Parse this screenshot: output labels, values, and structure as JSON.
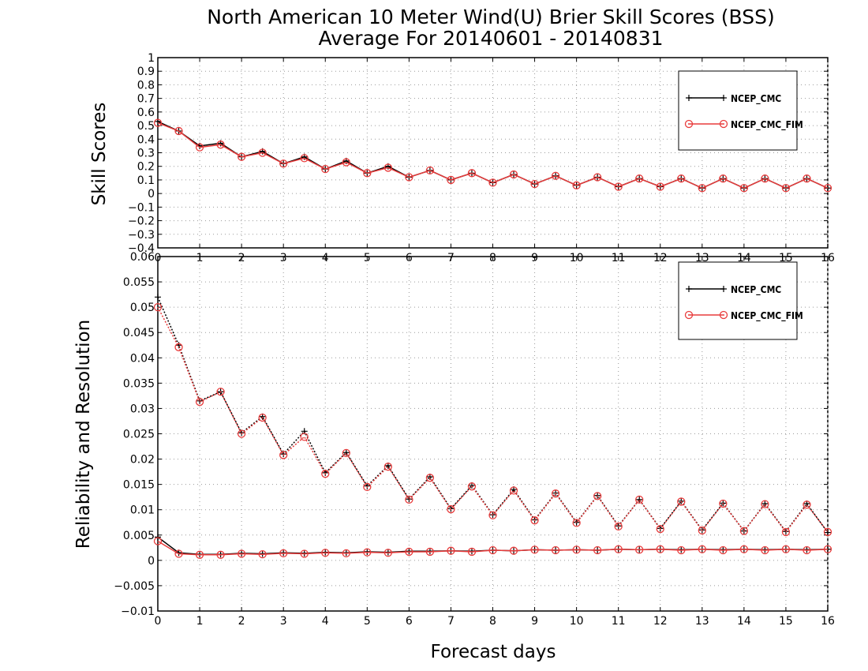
{
  "title_line1": "North American 10 Meter Wind(U) Brier Skill Scores (BSS)",
  "title_line2": "Average For 20140601 - 20140831",
  "xlabel": "Forecast days",
  "colors": {
    "ncep_cmc": "#000000",
    "ncep_cmc_fim": "#e83c3c",
    "grid": "#9a9a9a"
  },
  "chart_data": [
    {
      "type": "line",
      "title": "",
      "xlabel": "",
      "ylabel": "Skill Scores",
      "xlim": [
        0,
        16
      ],
      "ylim": [
        -0.4,
        1
      ],
      "xticks": [
        0,
        1,
        2,
        3,
        4,
        5,
        6,
        7,
        8,
        9,
        10,
        11,
        12,
        13,
        14,
        15,
        16
      ],
      "yticks": [
        -0.4,
        -0.3,
        -0.2,
        -0.1,
        0,
        0.1,
        0.2,
        0.3,
        0.4,
        0.5,
        0.6,
        0.7,
        0.8,
        0.9,
        1
      ],
      "grid": true,
      "legend": "top-right",
      "x": [
        0,
        0.5,
        1,
        1.5,
        2,
        2.5,
        3,
        3.5,
        4,
        4.5,
        5,
        5.5,
        6,
        6.5,
        7,
        7.5,
        8,
        8.5,
        9,
        9.5,
        10,
        10.5,
        11,
        11.5,
        12,
        12.5,
        13,
        13.5,
        14,
        14.5,
        15,
        15.5,
        16
      ],
      "series": [
        {
          "name": "NCEP_CMC",
          "style": "solid",
          "marker": "plus",
          "values": [
            0.53,
            0.46,
            0.35,
            0.37,
            0.27,
            0.31,
            0.22,
            0.27,
            0.18,
            0.24,
            0.15,
            0.2,
            0.12,
            0.17,
            0.1,
            0.15,
            0.08,
            0.14,
            0.07,
            0.13,
            0.06,
            0.12,
            0.05,
            0.11,
            0.05,
            0.11,
            0.04,
            0.11,
            0.04,
            0.11,
            0.04,
            0.11,
            0.04
          ]
        },
        {
          "name": "NCEP_CMC_FIM",
          "style": "solid",
          "marker": "circle",
          "values": [
            0.52,
            0.46,
            0.34,
            0.36,
            0.27,
            0.3,
            0.22,
            0.26,
            0.18,
            0.23,
            0.15,
            0.19,
            0.12,
            0.17,
            0.1,
            0.15,
            0.08,
            0.14,
            0.07,
            0.13,
            0.06,
            0.12,
            0.05,
            0.11,
            0.05,
            0.11,
            0.04,
            0.11,
            0.04,
            0.11,
            0.04,
            0.11,
            0.04
          ]
        }
      ]
    },
    {
      "type": "line",
      "title": "",
      "xlabel": "Forecast days",
      "ylabel": "Reliability and Resolution",
      "xlim": [
        0,
        16
      ],
      "ylim": [
        -0.01,
        0.06
      ],
      "xticks": [
        0,
        1,
        2,
        3,
        4,
        5,
        6,
        7,
        8,
        9,
        10,
        11,
        12,
        13,
        14,
        15,
        16
      ],
      "yticks": [
        -0.01,
        -0.005,
        0,
        0.005,
        0.01,
        0.015,
        0.02,
        0.025,
        0.03,
        0.035,
        0.04,
        0.045,
        0.05,
        0.055,
        0.06
      ],
      "grid": true,
      "legend": "top-right",
      "x": [
        0,
        0.5,
        1,
        1.5,
        2,
        2.5,
        3,
        3.5,
        4,
        4.5,
        5,
        5.5,
        6,
        6.5,
        7,
        7.5,
        8,
        8.5,
        9,
        9.5,
        10,
        10.5,
        11,
        11.5,
        12,
        12.5,
        13,
        13.5,
        14,
        14.5,
        15,
        15.5,
        16
      ],
      "series": [
        {
          "name": "NCEP_CMC",
          "metric": "resolution",
          "style": "dotted",
          "marker": "plus",
          "values": [
            0.052,
            0.0425,
            0.0315,
            0.0333,
            0.0252,
            0.0284,
            0.021,
            0.0255,
            0.0173,
            0.0213,
            0.0147,
            0.0187,
            0.0121,
            0.0165,
            0.0102,
            0.0148,
            0.009,
            0.014,
            0.008,
            0.0133,
            0.0075,
            0.0128,
            0.0068,
            0.012,
            0.0063,
            0.0117,
            0.006,
            0.0113,
            0.0058,
            0.0112,
            0.0057,
            0.0112,
            0.0055
          ]
        },
        {
          "name": "NCEP_CMC_FIM",
          "metric": "resolution",
          "style": "dotted",
          "marker": "circle",
          "values": [
            0.05,
            0.0421,
            0.0313,
            0.0333,
            0.025,
            0.0282,
            0.0208,
            0.0244,
            0.0171,
            0.0212,
            0.0145,
            0.0185,
            0.012,
            0.0163,
            0.0101,
            0.0146,
            0.0089,
            0.0138,
            0.0079,
            0.0132,
            0.0074,
            0.0127,
            0.0067,
            0.012,
            0.0062,
            0.0116,
            0.0059,
            0.0112,
            0.0058,
            0.0111,
            0.0056,
            0.011,
            0.0056
          ]
        },
        {
          "name": "NCEP_CMC",
          "metric": "reliability",
          "style": "solid",
          "marker": "plus",
          "values": [
            0.0046,
            0.0015,
            0.0012,
            0.0012,
            0.0014,
            0.0013,
            0.0015,
            0.0014,
            0.0016,
            0.0015,
            0.0017,
            0.0016,
            0.0018,
            0.0018,
            0.0019,
            0.0018,
            0.002,
            0.0019,
            0.0021,
            0.002,
            0.0021,
            0.002,
            0.0022,
            0.0021,
            0.0022,
            0.0021,
            0.0022,
            0.0021,
            0.0022,
            0.0021,
            0.0022,
            0.0021,
            0.0022
          ]
        },
        {
          "name": "NCEP_CMC_FIM",
          "metric": "reliability",
          "style": "solid",
          "marker": "circle",
          "values": [
            0.0038,
            0.0013,
            0.0011,
            0.0011,
            0.0013,
            0.0012,
            0.0014,
            0.0013,
            0.0015,
            0.0014,
            0.0016,
            0.0015,
            0.0017,
            0.0017,
            0.0019,
            0.0017,
            0.002,
            0.0019,
            0.0021,
            0.002,
            0.0021,
            0.002,
            0.0022,
            0.0021,
            0.0022,
            0.002,
            0.0022,
            0.002,
            0.0022,
            0.002,
            0.0022,
            0.002,
            0.0022
          ]
        }
      ]
    }
  ]
}
